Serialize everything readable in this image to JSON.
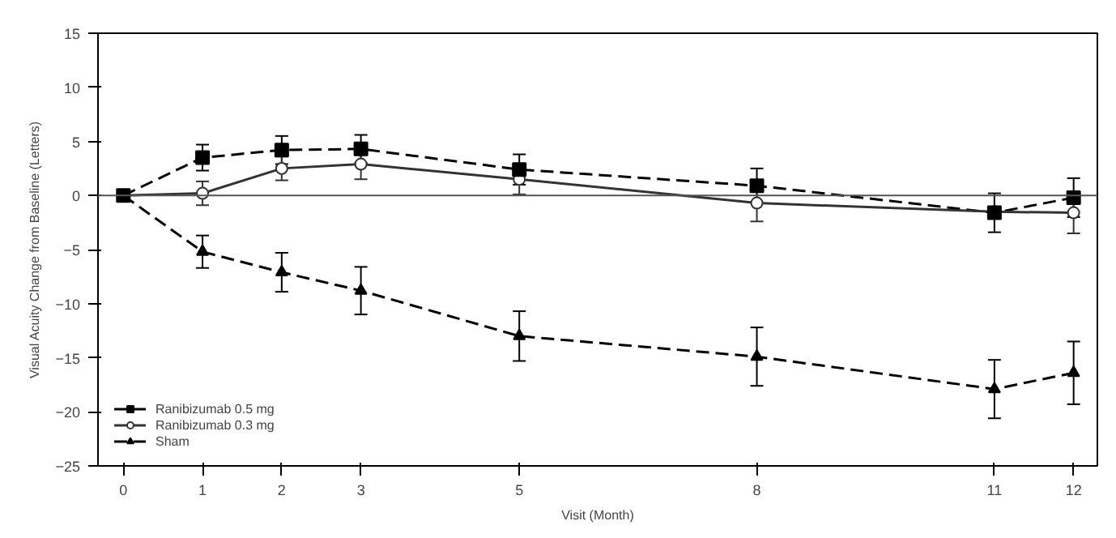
{
  "chart_data": {
    "type": "line",
    "xlabel": "Visit (Month)",
    "ylabel": "Visual Acuity Change from Baseline (Letters)",
    "x": [
      0,
      1,
      2,
      3,
      5,
      8,
      11,
      12
    ],
    "series": [
      {
        "name": "Ranibizumab 0.5 mg",
        "color": "#000000",
        "marker": "square",
        "line_style": "dashed",
        "values": [
          0,
          3.5,
          4.2,
          4.3,
          2.4,
          0.9,
          -1.6,
          -0.2
        ],
        "errors": [
          null,
          1.2,
          1.3,
          1.3,
          1.4,
          1.6,
          1.8,
          1.8
        ]
      },
      {
        "name": "Ranibizumab 0.3 mg",
        "color": "#333333",
        "marker": "circle",
        "line_style": "solid",
        "values": [
          0,
          0.2,
          2.5,
          2.9,
          1.5,
          -0.7,
          -1.5,
          -1.6
        ],
        "errors": [
          null,
          1.1,
          1.1,
          1.4,
          1.4,
          1.7,
          null,
          1.9
        ]
      },
      {
        "name": "Sham",
        "color": "#000000",
        "marker": "triangle",
        "line_style": "dashed",
        "values": [
          0,
          -5.2,
          -7.1,
          -8.8,
          -13.0,
          -14.9,
          -17.9,
          -16.4
        ],
        "errors": [
          null,
          1.5,
          1.8,
          2.2,
          2.3,
          2.7,
          2.7,
          2.9
        ]
      }
    ],
    "xlim": [
      -0.32,
      12.3
    ],
    "ylim": [
      -25,
      15
    ],
    "xticks": [
      0,
      1,
      2,
      3,
      5,
      8,
      11,
      12
    ],
    "yticks": [
      -25,
      -20,
      -15,
      -10,
      -5,
      0,
      5,
      10,
      15
    ],
    "ref_lines": [
      {
        "axis": "y",
        "value": 0,
        "label": null,
        "color": "#555555",
        "line_style": "solid"
      }
    ],
    "grid": false,
    "legend": "bottom left"
  }
}
